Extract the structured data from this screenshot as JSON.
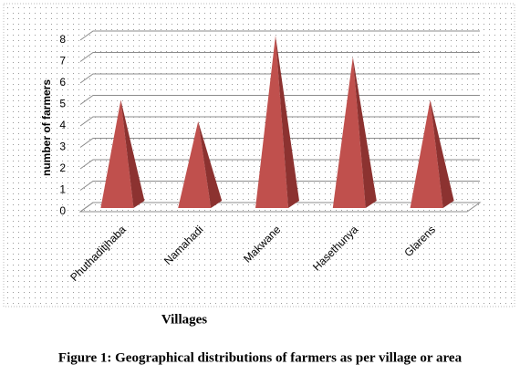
{
  "chart_data": {
    "type": "bar",
    "shape": "pyramid",
    "caption": "Figure 1: Geographical distributions of farmers as per village or area",
    "x_label": "Villages",
    "y_label": "number of farmers",
    "categories": [
      "Phuthaditjhaba",
      "Namahadi",
      "Makwane",
      "Hasethunya",
      "Glarens"
    ],
    "values": [
      5,
      4,
      8,
      7,
      5
    ],
    "color": "#c0504d",
    "ylim": [
      0,
      8
    ],
    "yticks": [
      0,
      1,
      2,
      3,
      4,
      5,
      6,
      7,
      8
    ],
    "grid": true
  }
}
